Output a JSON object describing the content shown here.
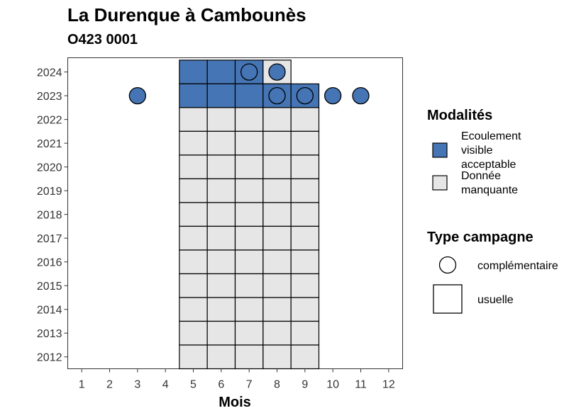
{
  "title": "La Durenque à Cambounès",
  "subtitle": "O423 0001",
  "chart_data": {
    "type": "heatmap",
    "xlabel": "Mois",
    "ylabel": "",
    "x_ticks": [
      1,
      2,
      3,
      4,
      5,
      6,
      7,
      8,
      9,
      10,
      11,
      12
    ],
    "y_ticks": [
      2012,
      2013,
      2014,
      2015,
      2016,
      2017,
      2018,
      2019,
      2020,
      2021,
      2022,
      2023,
      2024
    ],
    "xlim": [
      0.5,
      12.5
    ],
    "ylim": [
      2011.5,
      2024.6
    ],
    "colors": {
      "Ecoulement visible acceptable": "#4575b4",
      "Donnée manquante": "#e6e6e6"
    },
    "legend_fill": {
      "title": "Modalités",
      "items": [
        {
          "lines": [
            "Ecoulement",
            "visible",
            "acceptable"
          ],
          "color": "#4575b4"
        },
        {
          "lines": [
            "Donnée",
            "manquante"
          ],
          "color": "#e6e6e6"
        }
      ]
    },
    "legend_shape": {
      "title": "Type campagne",
      "items": [
        {
          "label": "complémentaire",
          "shape": "circle"
        },
        {
          "label": "usuelle",
          "shape": "square"
        }
      ]
    },
    "tiles": [
      {
        "month": 5,
        "year": 2024,
        "modalite": "Ecoulement visible acceptable"
      },
      {
        "month": 6,
        "year": 2024,
        "modalite": "Ecoulement visible acceptable"
      },
      {
        "month": 7,
        "year": 2024,
        "modalite": "Ecoulement visible acceptable"
      },
      {
        "month": 8,
        "year": 2024,
        "modalite": "Donnée manquante"
      },
      {
        "month": 5,
        "year": 2023,
        "modalite": "Ecoulement visible acceptable"
      },
      {
        "month": 6,
        "year": 2023,
        "modalite": "Ecoulement visible acceptable"
      },
      {
        "month": 7,
        "year": 2023,
        "modalite": "Ecoulement visible acceptable"
      },
      {
        "month": 8,
        "year": 2023,
        "modalite": "Ecoulement visible acceptable"
      },
      {
        "month": 9,
        "year": 2023,
        "modalite": "Ecoulement visible acceptable"
      },
      {
        "month": 5,
        "year": 2022,
        "modalite": "Donnée manquante"
      },
      {
        "month": 6,
        "year": 2022,
        "modalite": "Donnée manquante"
      },
      {
        "month": 7,
        "year": 2022,
        "modalite": "Donnée manquante"
      },
      {
        "month": 8,
        "year": 2022,
        "modalite": "Donnée manquante"
      },
      {
        "month": 9,
        "year": 2022,
        "modalite": "Donnée manquante"
      },
      {
        "month": 5,
        "year": 2021,
        "modalite": "Donnée manquante"
      },
      {
        "month": 6,
        "year": 2021,
        "modalite": "Donnée manquante"
      },
      {
        "month": 7,
        "year": 2021,
        "modalite": "Donnée manquante"
      },
      {
        "month": 8,
        "year": 2021,
        "modalite": "Donnée manquante"
      },
      {
        "month": 9,
        "year": 2021,
        "modalite": "Donnée manquante"
      },
      {
        "month": 5,
        "year": 2020,
        "modalite": "Donnée manquante"
      },
      {
        "month": 6,
        "year": 2020,
        "modalite": "Donnée manquante"
      },
      {
        "month": 7,
        "year": 2020,
        "modalite": "Donnée manquante"
      },
      {
        "month": 8,
        "year": 2020,
        "modalite": "Donnée manquante"
      },
      {
        "month": 9,
        "year": 2020,
        "modalite": "Donnée manquante"
      },
      {
        "month": 5,
        "year": 2019,
        "modalite": "Donnée manquante"
      },
      {
        "month": 6,
        "year": 2019,
        "modalite": "Donnée manquante"
      },
      {
        "month": 7,
        "year": 2019,
        "modalite": "Donnée manquante"
      },
      {
        "month": 8,
        "year": 2019,
        "modalite": "Donnée manquante"
      },
      {
        "month": 9,
        "year": 2019,
        "modalite": "Donnée manquante"
      },
      {
        "month": 5,
        "year": 2018,
        "modalite": "Donnée manquante"
      },
      {
        "month": 6,
        "year": 2018,
        "modalite": "Donnée manquante"
      },
      {
        "month": 7,
        "year": 2018,
        "modalite": "Donnée manquante"
      },
      {
        "month": 8,
        "year": 2018,
        "modalite": "Donnée manquante"
      },
      {
        "month": 9,
        "year": 2018,
        "modalite": "Donnée manquante"
      },
      {
        "month": 5,
        "year": 2017,
        "modalite": "Donnée manquante"
      },
      {
        "month": 6,
        "year": 2017,
        "modalite": "Donnée manquante"
      },
      {
        "month": 7,
        "year": 2017,
        "modalite": "Donnée manquante"
      },
      {
        "month": 8,
        "year": 2017,
        "modalite": "Donnée manquante"
      },
      {
        "month": 9,
        "year": 2017,
        "modalite": "Donnée manquante"
      },
      {
        "month": 5,
        "year": 2016,
        "modalite": "Donnée manquante"
      },
      {
        "month": 6,
        "year": 2016,
        "modalite": "Donnée manquante"
      },
      {
        "month": 7,
        "year": 2016,
        "modalite": "Donnée manquante"
      },
      {
        "month": 8,
        "year": 2016,
        "modalite": "Donnée manquante"
      },
      {
        "month": 9,
        "year": 2016,
        "modalite": "Donnée manquante"
      },
      {
        "month": 5,
        "year": 2015,
        "modalite": "Donnée manquante"
      },
      {
        "month": 6,
        "year": 2015,
        "modalite": "Donnée manquante"
      },
      {
        "month": 7,
        "year": 2015,
        "modalite": "Donnée manquante"
      },
      {
        "month": 8,
        "year": 2015,
        "modalite": "Donnée manquante"
      },
      {
        "month": 9,
        "year": 2015,
        "modalite": "Donnée manquante"
      },
      {
        "month": 5,
        "year": 2014,
        "modalite": "Donnée manquante"
      },
      {
        "month": 6,
        "year": 2014,
        "modalite": "Donnée manquante"
      },
      {
        "month": 7,
        "year": 2014,
        "modalite": "Donnée manquante"
      },
      {
        "month": 8,
        "year": 2014,
        "modalite": "Donnée manquante"
      },
      {
        "month": 9,
        "year": 2014,
        "modalite": "Donnée manquante"
      },
      {
        "month": 5,
        "year": 2013,
        "modalite": "Donnée manquante"
      },
      {
        "month": 6,
        "year": 2013,
        "modalite": "Donnée manquante"
      },
      {
        "month": 7,
        "year": 2013,
        "modalite": "Donnée manquante"
      },
      {
        "month": 8,
        "year": 2013,
        "modalite": "Donnée manquante"
      },
      {
        "month": 9,
        "year": 2013,
        "modalite": "Donnée manquante"
      },
      {
        "month": 5,
        "year": 2012,
        "modalite": "Donnée manquante"
      },
      {
        "month": 6,
        "year": 2012,
        "modalite": "Donnée manquante"
      },
      {
        "month": 7,
        "year": 2012,
        "modalite": "Donnée manquante"
      },
      {
        "month": 8,
        "year": 2012,
        "modalite": "Donnée manquante"
      },
      {
        "month": 9,
        "year": 2012,
        "modalite": "Donnée manquante"
      }
    ],
    "points": [
      {
        "month": 7,
        "year": 2024,
        "modalite": "Ecoulement visible acceptable"
      },
      {
        "month": 8,
        "year": 2024,
        "modalite": "Ecoulement visible acceptable"
      },
      {
        "month": 3,
        "year": 2023,
        "modalite": "Ecoulement visible acceptable"
      },
      {
        "month": 8,
        "year": 2023,
        "modalite": "Ecoulement visible acceptable"
      },
      {
        "month": 9,
        "year": 2023,
        "modalite": "Ecoulement visible acceptable"
      },
      {
        "month": 10,
        "year": 2023,
        "modalite": "Ecoulement visible acceptable"
      },
      {
        "month": 11,
        "year": 2023,
        "modalite": "Ecoulement visible acceptable"
      }
    ]
  }
}
